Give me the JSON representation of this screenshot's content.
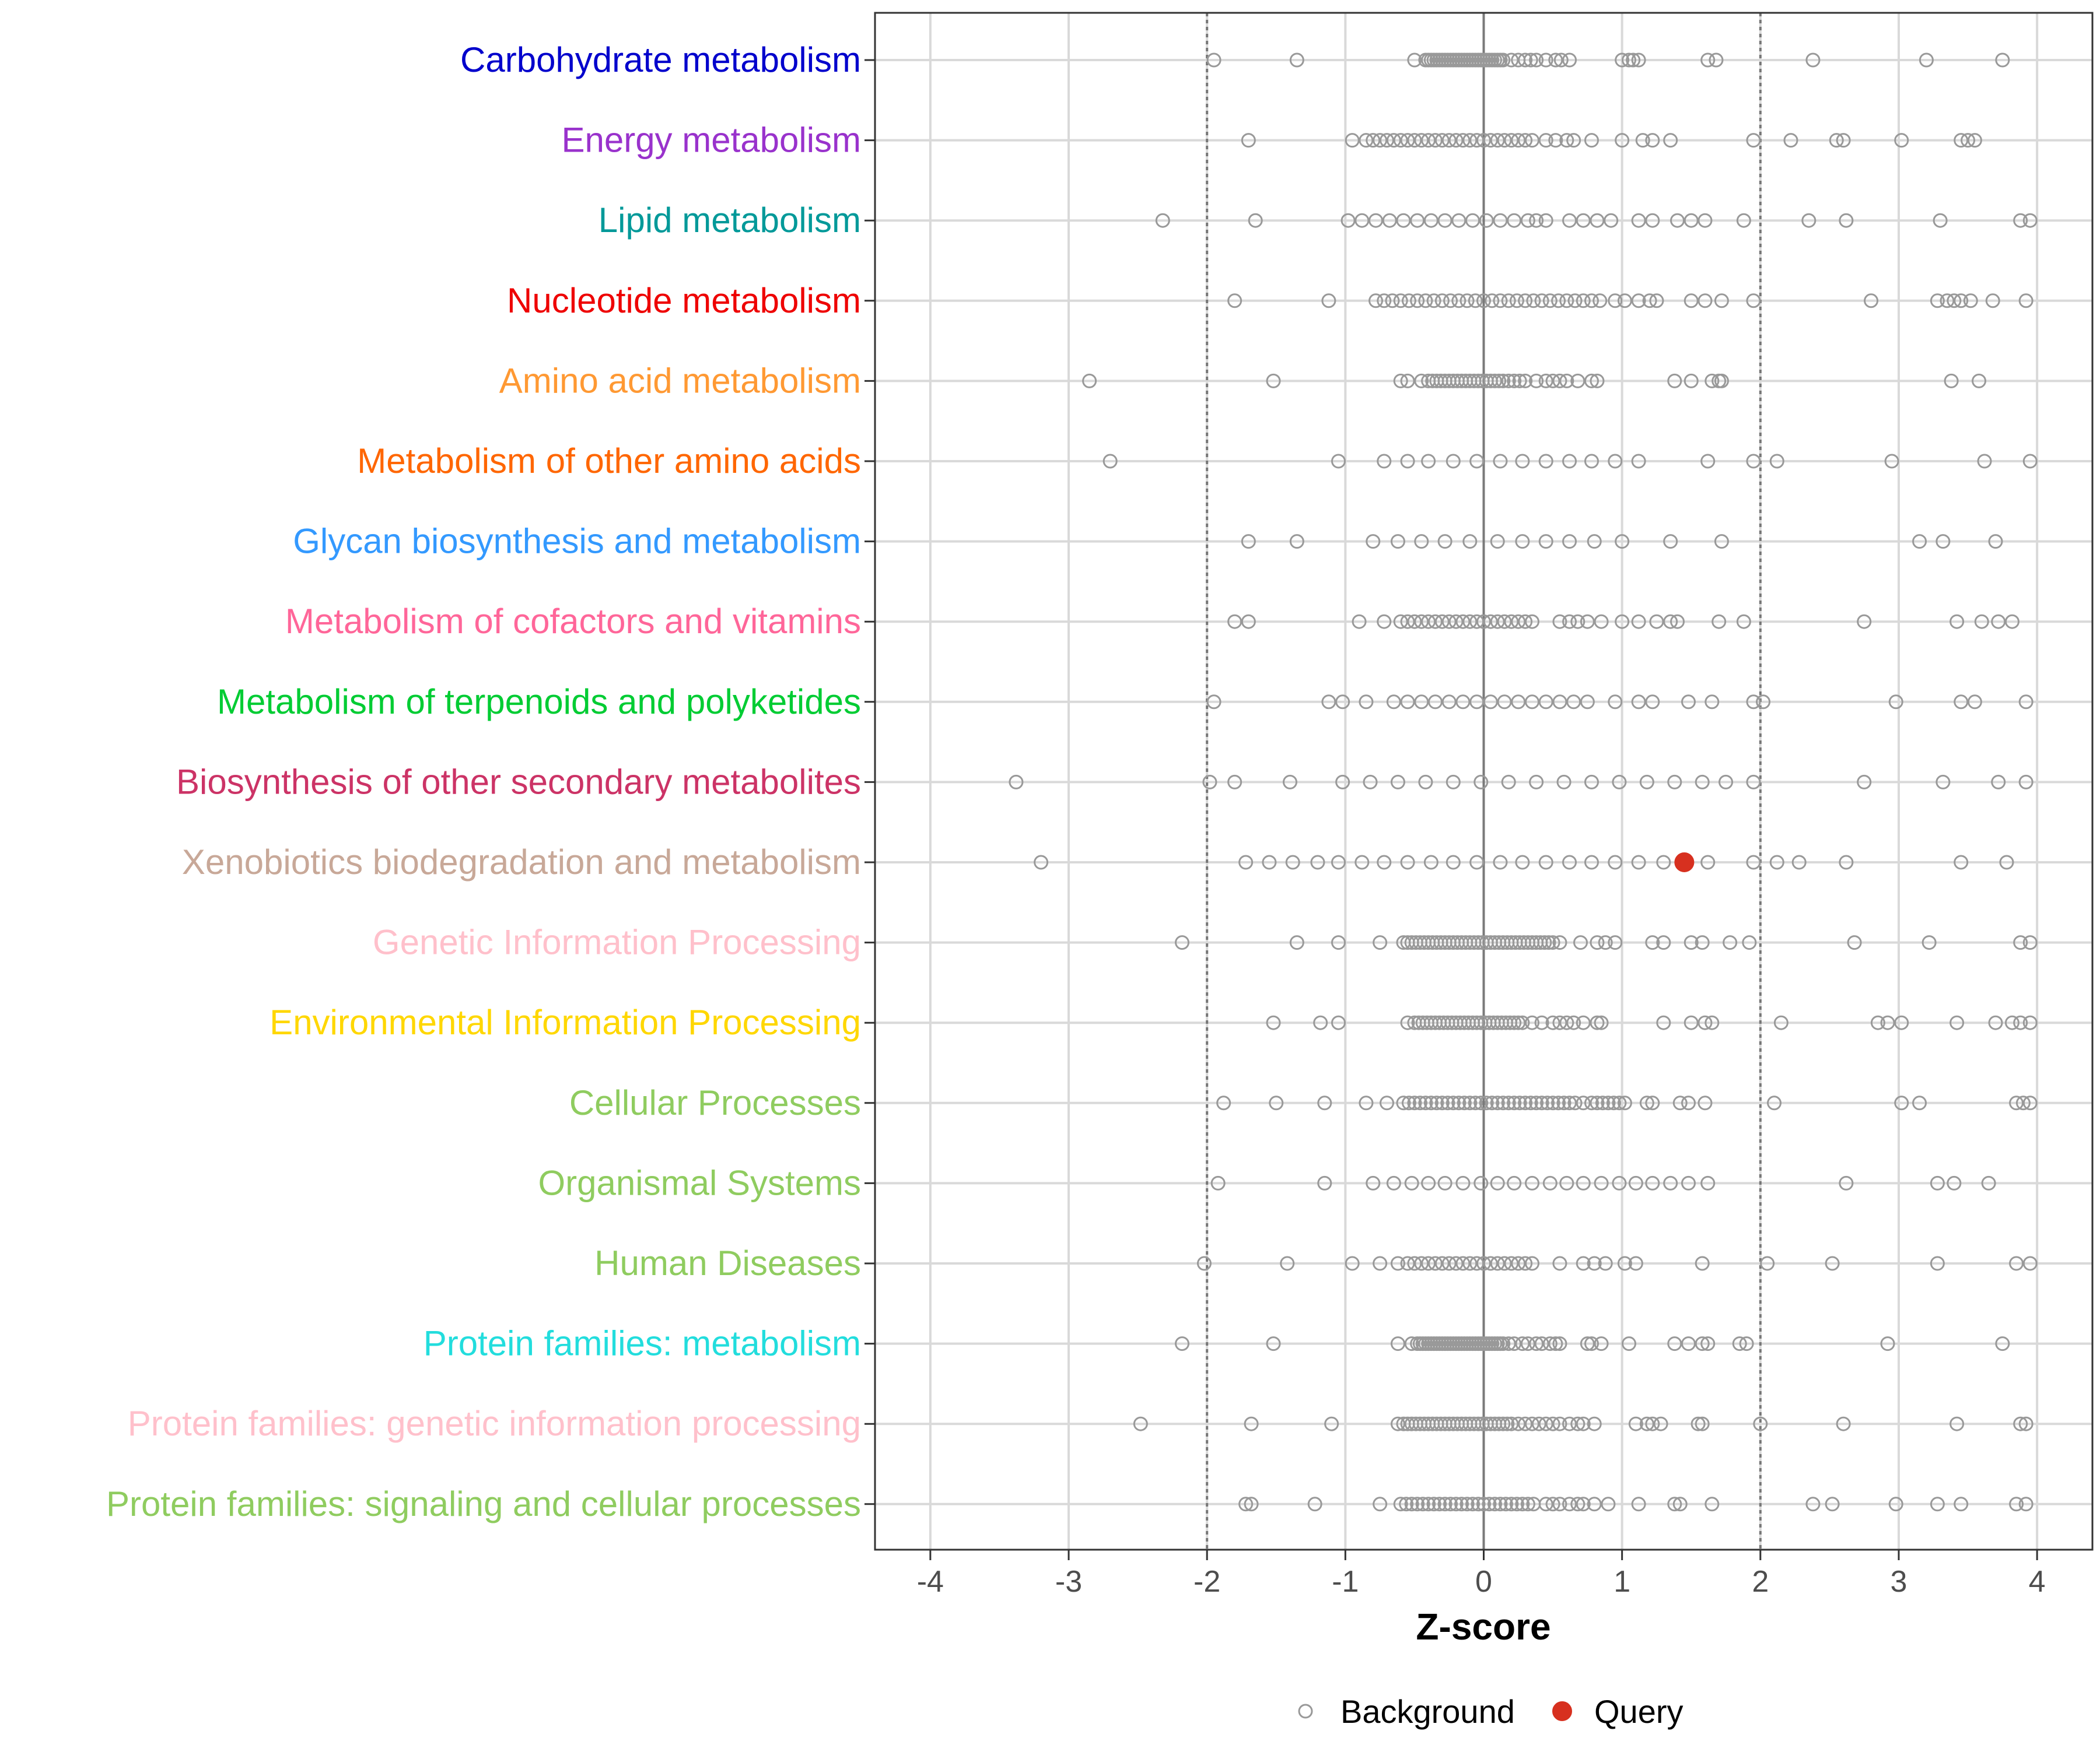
{
  "chart_data": {
    "type": "scatter",
    "title": "",
    "xlabel": "Z-score",
    "ylabel": "",
    "xlim": [
      -4.4,
      4.4
    ],
    "x_ticks": [
      -4,
      -3,
      -2,
      -1,
      0,
      1,
      2,
      3,
      4
    ],
    "threshold_lines": [
      -2,
      2
    ],
    "zero_line": 0,
    "grid": true,
    "legend_position": "bottom",
    "legend": [
      {
        "name": "Background",
        "style": "open-circle",
        "color": "#999999"
      },
      {
        "name": "Query",
        "style": "filled-circle",
        "color": "#d7301f"
      }
    ],
    "categories": [
      {
        "label": "Carbohydrate metabolism",
        "color": "#0000cc",
        "values": [
          -1.95,
          -1.35,
          -0.5,
          -0.42,
          -0.4,
          -0.38,
          -0.36,
          -0.34,
          -0.32,
          -0.3,
          -0.28,
          -0.26,
          -0.24,
          -0.22,
          -0.2,
          -0.18,
          -0.16,
          -0.14,
          -0.12,
          -0.1,
          -0.08,
          -0.06,
          -0.04,
          -0.02,
          0,
          0.02,
          0.04,
          0.06,
          0.08,
          0.1,
          0.12,
          0.14,
          0.2,
          0.25,
          0.3,
          0.34,
          0.38,
          0.45,
          0.52,
          0.56,
          0.62,
          1.0,
          1.05,
          1.08,
          1.12,
          1.62,
          1.68,
          2.38,
          3.2,
          3.75
        ]
      },
      {
        "label": "Energy metabolism",
        "color": "#9932cc",
        "values": [
          -1.7,
          -0.95,
          -0.85,
          -0.8,
          -0.75,
          -0.7,
          -0.65,
          -0.6,
          -0.55,
          -0.5,
          -0.45,
          -0.4,
          -0.35,
          -0.3,
          -0.25,
          -0.2,
          -0.15,
          -0.1,
          -0.05,
          0,
          0.05,
          0.1,
          0.15,
          0.2,
          0.25,
          0.3,
          0.35,
          0.45,
          0.52,
          0.6,
          0.65,
          0.78,
          1.0,
          1.15,
          1.22,
          1.35,
          1.95,
          2.22,
          2.55,
          2.6,
          3.02,
          3.45,
          3.5,
          3.55
        ]
      },
      {
        "label": "Lipid metabolism",
        "color": "#009999",
        "values": [
          -2.32,
          -1.65,
          -0.98,
          -0.88,
          -0.78,
          -0.68,
          -0.58,
          -0.48,
          -0.38,
          -0.28,
          -0.18,
          -0.08,
          0.02,
          0.12,
          0.22,
          0.32,
          0.38,
          0.45,
          0.62,
          0.72,
          0.82,
          0.92,
          1.12,
          1.22,
          1.4,
          1.5,
          1.6,
          1.88,
          2.35,
          2.62,
          3.3,
          3.88,
          3.95
        ]
      },
      {
        "label": "Nucleotide metabolism",
        "color": "#ee0000",
        "values": [
          -1.8,
          -1.12,
          -0.78,
          -0.72,
          -0.66,
          -0.6,
          -0.54,
          -0.48,
          -0.42,
          -0.36,
          -0.3,
          -0.24,
          -0.18,
          -0.12,
          -0.06,
          0,
          0.06,
          0.12,
          0.18,
          0.24,
          0.3,
          0.36,
          0.42,
          0.48,
          0.54,
          0.6,
          0.66,
          0.72,
          0.78,
          0.84,
          0.95,
          1.02,
          1.12,
          1.2,
          1.25,
          1.5,
          1.6,
          1.72,
          1.95,
          2.8,
          3.28,
          3.35,
          3.4,
          3.45,
          3.52,
          3.68,
          3.92
        ]
      },
      {
        "label": "Amino acid metabolism",
        "color": "#ff9933",
        "values": [
          -2.85,
          -1.52,
          -0.6,
          -0.55,
          -0.45,
          -0.4,
          -0.37,
          -0.34,
          -0.31,
          -0.28,
          -0.25,
          -0.22,
          -0.19,
          -0.16,
          -0.13,
          -0.1,
          -0.07,
          -0.04,
          -0.01,
          0.02,
          0.05,
          0.08,
          0.11,
          0.14,
          0.18,
          0.22,
          0.26,
          0.3,
          0.38,
          0.45,
          0.5,
          0.55,
          0.6,
          0.68,
          0.78,
          0.82,
          1.38,
          1.5,
          1.65,
          1.7,
          1.72,
          3.38,
          3.58
        ]
      },
      {
        "label": "Metabolism of other amino acids",
        "color": "#ff6600",
        "values": [
          -2.7,
          -1.05,
          -0.72,
          -0.55,
          -0.4,
          -0.22,
          -0.05,
          0.12,
          0.28,
          0.45,
          0.62,
          0.78,
          0.95,
          1.12,
          1.62,
          1.95,
          2.12,
          2.95,
          3.62,
          3.95
        ]
      },
      {
        "label": "Glycan biosynthesis and metabolism",
        "color": "#3399ff",
        "values": [
          -1.7,
          -1.35,
          -0.8,
          -0.62,
          -0.45,
          -0.28,
          -0.1,
          0.1,
          0.28,
          0.45,
          0.62,
          0.8,
          1.0,
          1.35,
          1.72,
          3.15,
          3.32,
          3.7
        ]
      },
      {
        "label": "Metabolism of cofactors and vitamins",
        "color": "#ff6699",
        "values": [
          -1.8,
          -1.7,
          -0.9,
          -0.72,
          -0.6,
          -0.55,
          -0.5,
          -0.45,
          -0.4,
          -0.35,
          -0.3,
          -0.25,
          -0.2,
          -0.15,
          -0.1,
          -0.05,
          0,
          0.05,
          0.1,
          0.15,
          0.2,
          0.25,
          0.3,
          0.35,
          0.55,
          0.62,
          0.68,
          0.75,
          0.85,
          1.0,
          1.12,
          1.25,
          1.35,
          1.4,
          1.7,
          1.88,
          2.75,
          3.42,
          3.6,
          3.72,
          3.82
        ]
      },
      {
        "label": "Metabolism of terpenoids and polyketides",
        "color": "#00cc33",
        "values": [
          -1.95,
          -1.12,
          -1.02,
          -0.85,
          -0.65,
          -0.55,
          -0.45,
          -0.35,
          -0.25,
          -0.15,
          -0.05,
          0.05,
          0.15,
          0.25,
          0.35,
          0.45,
          0.55,
          0.65,
          0.75,
          0.95,
          1.12,
          1.22,
          1.48,
          1.65,
          1.95,
          2.02,
          2.98,
          3.45,
          3.55,
          3.92
        ]
      },
      {
        "label": "Biosynthesis of other secondary metabolites",
        "color": "#cc3366",
        "values": [
          -3.38,
          -1.98,
          -1.8,
          -1.4,
          -1.02,
          -0.82,
          -0.62,
          -0.42,
          -0.22,
          -0.02,
          0.18,
          0.38,
          0.58,
          0.78,
          0.98,
          1.18,
          1.38,
          1.58,
          1.75,
          1.95,
          2.75,
          3.32,
          3.72,
          3.92
        ]
      },
      {
        "label": "Xenobiotics biodegradation and metabolism",
        "color": "#c8a898",
        "values": [
          -3.2,
          -1.72,
          -1.55,
          -1.38,
          -1.2,
          -1.05,
          -0.88,
          -0.72,
          -0.55,
          -0.38,
          -0.22,
          -0.05,
          0.12,
          0.28,
          0.45,
          0.62,
          0.78,
          0.95,
          1.12,
          1.3,
          1.62,
          1.95,
          2.12,
          2.28,
          2.62,
          3.45,
          3.78
        ]
      },
      {
        "label": "Genetic Information Processing",
        "color": "#ffc0cb",
        "values": [
          -2.18,
          -1.35,
          -1.05,
          -0.75,
          -0.58,
          -0.55,
          -0.52,
          -0.49,
          -0.46,
          -0.43,
          -0.4,
          -0.37,
          -0.34,
          -0.31,
          -0.28,
          -0.25,
          -0.22,
          -0.19,
          -0.16,
          -0.13,
          -0.1,
          -0.07,
          -0.04,
          -0.01,
          0.02,
          0.05,
          0.08,
          0.11,
          0.14,
          0.17,
          0.2,
          0.23,
          0.26,
          0.29,
          0.32,
          0.35,
          0.38,
          0.41,
          0.44,
          0.47,
          0.5,
          0.55,
          0.7,
          0.82,
          0.88,
          0.95,
          1.22,
          1.3,
          1.5,
          1.58,
          1.78,
          1.92,
          2.68,
          3.22,
          3.88,
          3.95
        ]
      },
      {
        "label": "Environmental Information Processing",
        "color": "#ffd700",
        "values": [
          -1.52,
          -1.18,
          -1.05,
          -0.55,
          -0.5,
          -0.47,
          -0.44,
          -0.41,
          -0.38,
          -0.35,
          -0.32,
          -0.29,
          -0.26,
          -0.23,
          -0.2,
          -0.17,
          -0.14,
          -0.11,
          -0.08,
          -0.05,
          -0.02,
          0.01,
          0.04,
          0.07,
          0.1,
          0.13,
          0.16,
          0.19,
          0.22,
          0.25,
          0.28,
          0.35,
          0.42,
          0.5,
          0.55,
          0.6,
          0.65,
          0.72,
          0.82,
          0.85,
          1.3,
          1.5,
          1.6,
          1.65,
          2.15,
          2.85,
          2.92,
          3.02,
          3.42,
          3.7,
          3.82,
          3.88,
          3.95
        ]
      },
      {
        "label": "Cellular Processes",
        "color": "#8fcc5f",
        "values": [
          -1.88,
          -1.5,
          -1.15,
          -0.85,
          -0.7,
          -0.58,
          -0.54,
          -0.5,
          -0.46,
          -0.42,
          -0.38,
          -0.34,
          -0.3,
          -0.26,
          -0.22,
          -0.18,
          -0.14,
          -0.1,
          -0.06,
          -0.02,
          0.02,
          0.06,
          0.1,
          0.14,
          0.18,
          0.22,
          0.26,
          0.3,
          0.34,
          0.38,
          0.42,
          0.46,
          0.5,
          0.54,
          0.58,
          0.62,
          0.66,
          0.72,
          0.78,
          0.82,
          0.86,
          0.9,
          0.94,
          0.98,
          1.02,
          1.18,
          1.22,
          1.42,
          1.48,
          1.6,
          2.1,
          3.02,
          3.15,
          3.85,
          3.9,
          3.95
        ]
      },
      {
        "label": "Organismal Systems",
        "color": "#8fcc5f",
        "values": [
          -1.92,
          -1.15,
          -0.8,
          -0.65,
          -0.52,
          -0.4,
          -0.28,
          -0.15,
          -0.02,
          0.1,
          0.22,
          0.35,
          0.48,
          0.6,
          0.72,
          0.85,
          0.98,
          1.1,
          1.22,
          1.35,
          1.48,
          1.62,
          2.62,
          3.28,
          3.4,
          3.65
        ]
      },
      {
        "label": "Human Diseases",
        "color": "#8fcc5f",
        "values": [
          -2.02,
          -1.42,
          -0.95,
          -0.75,
          -0.62,
          -0.55,
          -0.5,
          -0.45,
          -0.4,
          -0.35,
          -0.3,
          -0.25,
          -0.2,
          -0.15,
          -0.1,
          -0.05,
          0,
          0.05,
          0.1,
          0.15,
          0.2,
          0.25,
          0.3,
          0.35,
          0.55,
          0.72,
          0.8,
          0.88,
          1.02,
          1.1,
          1.58,
          2.05,
          2.52,
          3.28,
          3.85,
          3.95
        ]
      },
      {
        "label": "Protein families: metabolism",
        "color": "#22dddd",
        "values": [
          -2.18,
          -1.52,
          -0.62,
          -0.52,
          -0.48,
          -0.46,
          -0.44,
          -0.42,
          -0.4,
          -0.38,
          -0.36,
          -0.34,
          -0.32,
          -0.3,
          -0.28,
          -0.26,
          -0.24,
          -0.22,
          -0.2,
          -0.18,
          -0.16,
          -0.14,
          -0.12,
          -0.1,
          -0.08,
          -0.06,
          -0.04,
          -0.02,
          0,
          0.02,
          0.04,
          0.06,
          0.08,
          0.1,
          0.12,
          0.14,
          0.18,
          0.22,
          0.28,
          0.32,
          0.38,
          0.42,
          0.48,
          0.52,
          0.55,
          0.75,
          0.78,
          0.85,
          1.05,
          1.38,
          1.48,
          1.58,
          1.62,
          1.85,
          1.9,
          2.92,
          3.75
        ]
      },
      {
        "label": "Protein families: genetic information processing",
        "color": "#ffc0cb",
        "values": [
          -2.48,
          -1.68,
          -1.1,
          -0.62,
          -0.58,
          -0.55,
          -0.52,
          -0.49,
          -0.46,
          -0.43,
          -0.4,
          -0.37,
          -0.34,
          -0.31,
          -0.28,
          -0.25,
          -0.22,
          -0.19,
          -0.16,
          -0.13,
          -0.1,
          -0.07,
          -0.04,
          -0.01,
          0.02,
          0.05,
          0.08,
          0.11,
          0.14,
          0.17,
          0.2,
          0.25,
          0.3,
          0.35,
          0.4,
          0.45,
          0.5,
          0.55,
          0.62,
          0.68,
          0.72,
          0.8,
          1.1,
          1.18,
          1.22,
          1.28,
          1.55,
          1.58,
          2.0,
          2.6,
          3.42,
          3.88,
          3.92
        ]
      },
      {
        "label": "Protein families: signaling and cellular processes",
        "color": "#8fcc5f",
        "values": [
          -1.72,
          -1.68,
          -1.22,
          -0.75,
          -0.6,
          -0.56,
          -0.52,
          -0.48,
          -0.44,
          -0.4,
          -0.36,
          -0.32,
          -0.28,
          -0.24,
          -0.2,
          -0.16,
          -0.12,
          -0.08,
          -0.04,
          0,
          0.04,
          0.08,
          0.12,
          0.16,
          0.2,
          0.24,
          0.28,
          0.32,
          0.36,
          0.45,
          0.5,
          0.55,
          0.62,
          0.68,
          0.72,
          0.8,
          0.9,
          1.12,
          1.38,
          1.42,
          1.65,
          2.38,
          2.52,
          2.98,
          3.28,
          3.45,
          3.85,
          3.92
        ]
      }
    ],
    "query_points": [
      {
        "category": "Xenobiotics biodegradation and metabolism",
        "value": 1.45
      }
    ]
  }
}
